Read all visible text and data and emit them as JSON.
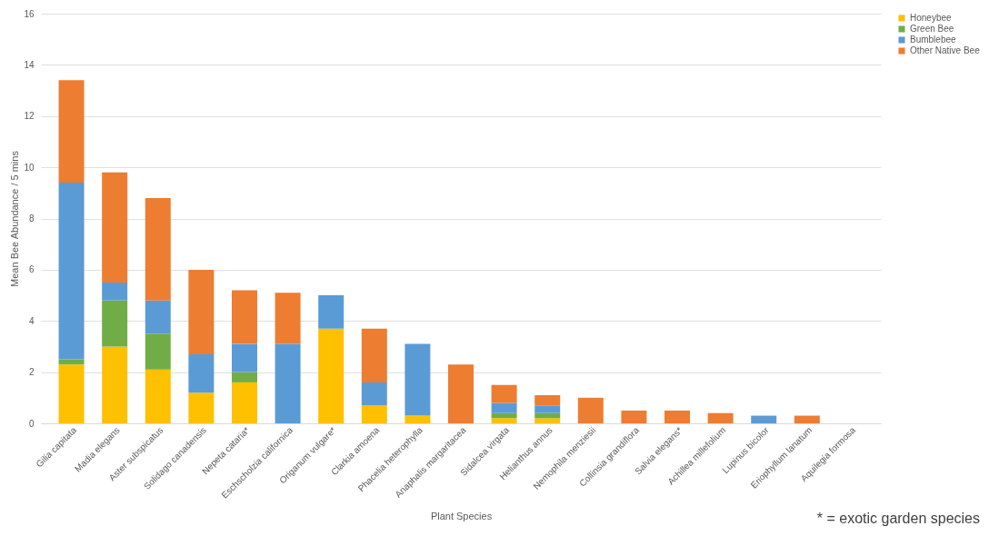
{
  "chart_data": {
    "type": "bar",
    "stacked": true,
    "xlabel": "Plant Species",
    "ylabel": "Mean Bee Abundance / 5 mins",
    "categories": [
      "Gilia capitata",
      "Madia elegans",
      "Aster subspicatus",
      "Solidago canadensis",
      "Nepeta cataria*",
      "Eschscholzia californica",
      "Origanum vulgare*",
      "Clarkia amoena",
      "Phacelia heterophylla",
      "Anaphalis margaritacea",
      "Sidalcea virgata",
      "Helianthus annus",
      "Nemophila menziesii",
      "Collinsia grandiflora",
      "Salvia elegans*",
      "Achillea millefolium",
      "Lupinus bicolor",
      "Eriophyllum lanatum",
      "Aquilegia formosa"
    ],
    "series": [
      {
        "name": "Honeybee",
        "color": "#ffc000",
        "values": [
          2.3,
          3.0,
          2.1,
          1.2,
          1.6,
          0,
          3.7,
          0.7,
          0.3,
          0,
          0.2,
          0.2,
          0,
          0,
          0,
          0,
          0,
          0,
          0
        ]
      },
      {
        "name": "Green Bee",
        "color": "#70ad47",
        "values": [
          0.2,
          1.8,
          1.4,
          0,
          0.4,
          0,
          0,
          0,
          0,
          0,
          0.2,
          0.2,
          0,
          0,
          0,
          0,
          0,
          0,
          0
        ]
      },
      {
        "name": "Bumblebee",
        "color": "#5b9bd5",
        "values": [
          6.9,
          0.7,
          1.3,
          1.5,
          1.1,
          3.1,
          1.3,
          0.9,
          2.8,
          0,
          0.4,
          0.3,
          0,
          0,
          0,
          0,
          0.3,
          0,
          0
        ]
      },
      {
        "name": "Other Native Bee",
        "color": "#ed7d31",
        "values": [
          4.0,
          4.3,
          4.0,
          3.3,
          2.1,
          2.0,
          0,
          2.1,
          0,
          2.3,
          0.7,
          0.4,
          1.0,
          0.5,
          0.5,
          0.4,
          0,
          0.3,
          0
        ]
      }
    ],
    "ylim": [
      0,
      16
    ],
    "yticks": [
      0,
      2,
      4,
      6,
      8,
      10,
      12,
      14,
      16
    ],
    "grid": "y",
    "legend": "right",
    "annotations": [
      "* = exotic garden species"
    ]
  }
}
